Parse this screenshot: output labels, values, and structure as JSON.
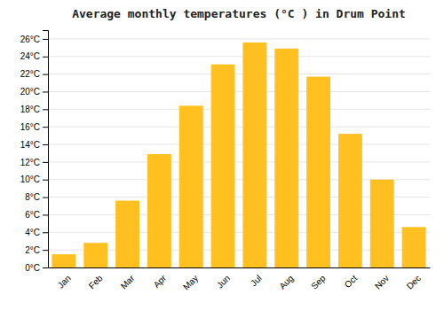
{
  "chart_data": {
    "type": "bar",
    "title": "Average monthly temperatures (°C ) in Drum Point",
    "categories": [
      "Jan",
      "Feb",
      "Mar",
      "Apr",
      "May",
      "Jun",
      "Jul",
      "Aug",
      "Sep",
      "Oct",
      "Nov",
      "Dec"
    ],
    "values": [
      1.5,
      2.8,
      7.6,
      12.9,
      18.4,
      23.1,
      25.6,
      24.9,
      21.7,
      15.2,
      10.0,
      4.6
    ],
    "color": "#FFC020",
    "ylim": [
      0,
      27
    ],
    "yticks": [
      {
        "value": 0,
        "label": "0°C"
      },
      {
        "value": 2,
        "label": "2°C"
      },
      {
        "value": 4,
        "label": "4°C"
      },
      {
        "value": 6,
        "label": "6°C"
      },
      {
        "value": 8,
        "label": "8°C"
      },
      {
        "value": 10,
        "label": "10°C"
      },
      {
        "value": 12,
        "label": "12°C"
      },
      {
        "value": 14,
        "label": "14°C"
      },
      {
        "value": 16,
        "label": "16°C"
      },
      {
        "value": 18,
        "label": "18°C"
      },
      {
        "value": 20,
        "label": "20°C"
      },
      {
        "value": 22,
        "label": "22°C"
      },
      {
        "value": 24,
        "label": "24°C"
      },
      {
        "value": 26,
        "label": "26°C"
      }
    ],
    "grid": true
  }
}
